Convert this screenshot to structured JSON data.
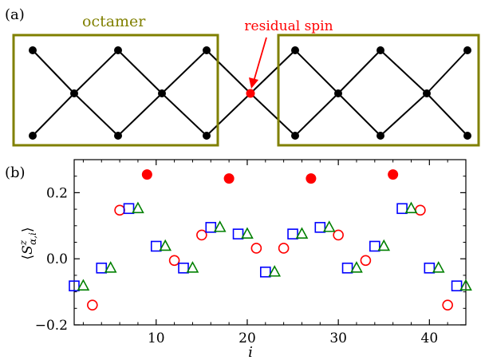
{
  "panel_a": {
    "label": "(a)",
    "octamer_label": "octamer",
    "residual_label": "residual spin",
    "colors": {
      "box": "#808000",
      "residual": "#ff0000",
      "site": "#000000"
    }
  },
  "chart_data": {
    "type": "scatter",
    "panel_label": "(b)",
    "xlabel": "i",
    "ylabel": "⟨S^z_{α,i}⟩",
    "xlim": [
      1,
      44
    ],
    "ylim": [
      -0.2,
      0.3
    ],
    "xticks": [
      10,
      20,
      30,
      40
    ],
    "yticks": [
      -0.2,
      0.0,
      0.2
    ],
    "xtick_labels": [
      "10",
      "20",
      "30",
      "40"
    ],
    "ytick_labels": [
      "−0.2",
      "0.0",
      "0.2"
    ],
    "grid": false,
    "series": [
      {
        "marker": "filled-circle",
        "color": "#ff0000",
        "x": [
          9,
          18,
          27,
          36
        ],
        "y": [
          0.255,
          0.243,
          0.243,
          0.255
        ]
      },
      {
        "marker": "open-circle",
        "color": "#ff0000",
        "x": [
          3,
          6,
          12,
          15,
          21,
          24,
          30,
          33,
          39,
          42
        ],
        "y": [
          -0.14,
          0.147,
          -0.005,
          0.072,
          0.032,
          0.032,
          0.072,
          -0.005,
          0.147,
          -0.14
        ]
      },
      {
        "marker": "open-square",
        "color": "#0000ff",
        "x": [
          1,
          4,
          7,
          10,
          13,
          16,
          19,
          22,
          25,
          28,
          31,
          34,
          37,
          40,
          43
        ],
        "y": [
          -0.082,
          -0.028,
          0.152,
          0.038,
          -0.028,
          0.095,
          0.075,
          -0.04,
          0.075,
          0.095,
          -0.028,
          0.038,
          0.152,
          -0.028,
          -0.082
        ]
      },
      {
        "marker": "open-triangle",
        "color": "#008000",
        "x": [
          2,
          5,
          8,
          11,
          14,
          17,
          20,
          23,
          26,
          29,
          32,
          35,
          38,
          41,
          44
        ],
        "y": [
          -0.082,
          -0.028,
          0.152,
          0.038,
          -0.028,
          0.095,
          0.075,
          -0.04,
          0.075,
          0.095,
          -0.028,
          0.038,
          0.152,
          -0.028,
          -0.082
        ]
      }
    ]
  }
}
